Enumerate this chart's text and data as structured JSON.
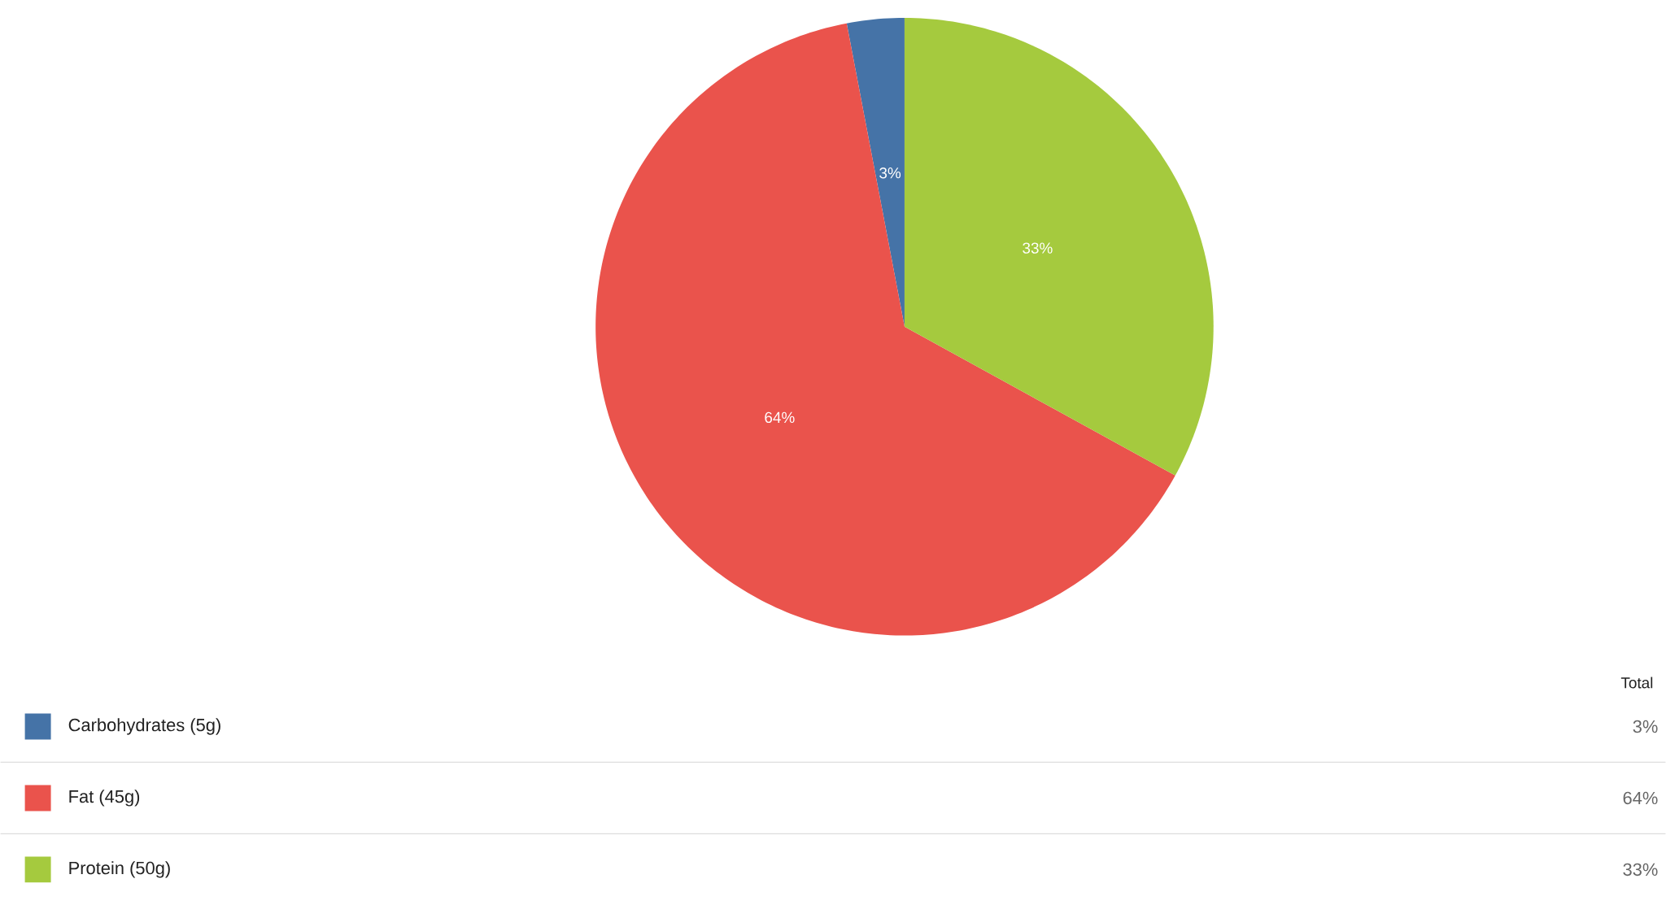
{
  "chart_data": {
    "type": "pie",
    "categories": [
      "Carbohydrates (5g)",
      "Fat (45g)",
      "Protein (50g)"
    ],
    "values": [
      3,
      64,
      33
    ],
    "value_labels": [
      "3%",
      "64%",
      "33%"
    ],
    "colors": [
      "#4573a7",
      "#ea534c",
      "#a5ca3e"
    ],
    "legend_title": "Total",
    "legend": "bottom"
  }
}
